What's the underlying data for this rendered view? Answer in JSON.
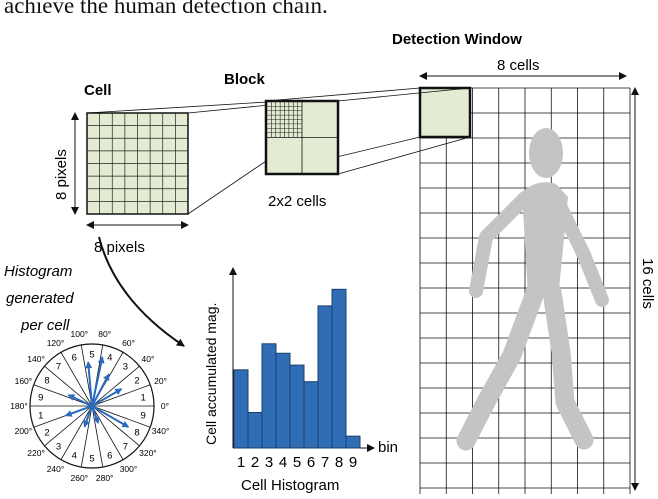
{
  "header_text": "achieve the human detection chain.",
  "labels": {
    "detection_window": "Detection Window",
    "cell": "Cell",
    "block": "Block",
    "eight_cells": "8 cells",
    "sixteen_cells": "16 cells",
    "eight_pixels_v": "8 pixels",
    "eight_pixels_h": "8 pixels",
    "two_by_two": "2x2 cells",
    "histogram_note": [
      "Histogram",
      "generated",
      "per cell"
    ],
    "y_axis": "Cell accumulated mag.",
    "x_axis": "bin",
    "hist_title": "Cell Histogram"
  },
  "compass": {
    "angles": [
      "0°",
      "20°",
      "40°",
      "60°",
      "80°",
      "100°",
      "120°",
      "140°",
      "160°",
      "180°",
      "200°",
      "220°",
      "240°",
      "260°",
      "280°",
      "300°",
      "320°",
      "340°"
    ],
    "sectors": [
      "1",
      "2",
      "3",
      "4",
      "5",
      "6",
      "7",
      "8",
      "9",
      "1",
      "2",
      "3",
      "4",
      "5",
      "6",
      "7",
      "8",
      "9"
    ]
  },
  "chart_data": {
    "type": "bar",
    "categories": [
      "1",
      "2",
      "3",
      "4",
      "5",
      "6",
      "7",
      "8",
      "9"
    ],
    "series": [
      {
        "values": [
          3.3,
          1.5,
          4.4,
          4.0,
          3.5,
          2.8,
          6.0,
          6.7,
          0.5
        ]
      }
    ],
    "ylabel": "Cell accumulated mag.",
    "xlabel": "bin",
    "title": "Cell Histogram",
    "ylim": [
      0,
      7.6
    ],
    "colors": {
      "bar": "#2f6eb5",
      "bar_edge": "#1c3f6e"
    }
  },
  "colors": {
    "cell_fill": "#e6eed5",
    "person": "#c4c4c4",
    "arrow_blue": "#2a6bbf"
  }
}
